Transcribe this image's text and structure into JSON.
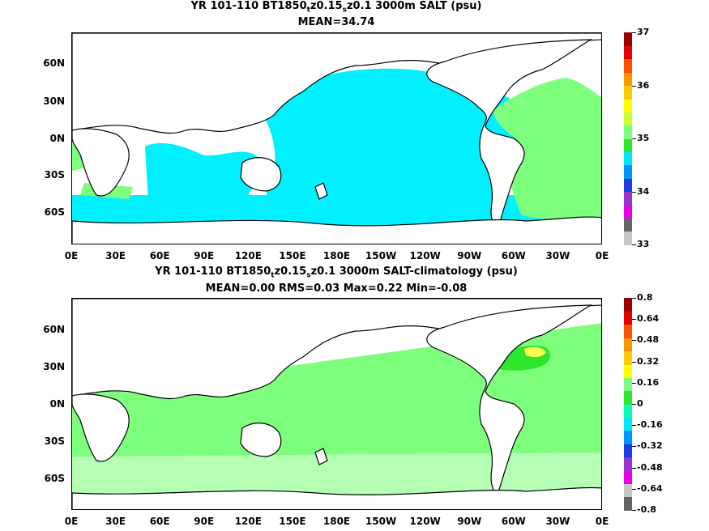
{
  "panel1": {
    "title_line1_a": "YR 101-110 BT1850",
    "title_line1_sub1": "t",
    "title_line1_b": "z0.15",
    "title_line1_sub2": "s",
    "title_line1_c": "z0.1 3000m SALT (psu)",
    "title_line2": "MEAN=34.74",
    "colorbar_labels": [
      "37",
      "36",
      "35",
      "34",
      "33"
    ],
    "colorbar_colors": [
      "#c8c8c8",
      "#646464",
      "#e600e6",
      "#9b32cd",
      "#1e3ce6",
      "#0096ff",
      "#00e6ff",
      "#2ee62e",
      "#7dff7d",
      "#c8ff32",
      "#ffff00",
      "#ffc800",
      "#ff9600",
      "#ff5000",
      "#e60000",
      "#9b0000"
    ]
  },
  "panel2": {
    "title_line1_a": "YR 101-110 BT1850",
    "title_line1_sub1": "t",
    "title_line1_b": "z0.15",
    "title_line1_sub2": "s",
    "title_line1_c": "z0.1 3000m SALT-climatology (psu)",
    "title_line2": "MEAN=0.00   RMS=0.03   Max=0.22   Min=-0.08",
    "colorbar_labels": [
      "0.8",
      "0.64",
      "0.48",
      "0.32",
      "0.16",
      "0",
      "-0.16",
      "-0.32",
      "-0.48",
      "-0.64",
      "-0.8"
    ],
    "colorbar_colors": [
      "#646464",
      "#c8c8c8",
      "#e600e6",
      "#9b32cd",
      "#1e3ce6",
      "#0096ff",
      "#00e6ff",
      "#00ffb4",
      "#2ee62e",
      "#7dff7d",
      "#ffff00",
      "#ffc800",
      "#ff9600",
      "#ff5000",
      "#e60000",
      "#9b0000"
    ]
  },
  "axes": {
    "y_labels": [
      "60N",
      "30N",
      "0N",
      "30S",
      "60S"
    ],
    "x_labels": [
      "0E",
      "30E",
      "60E",
      "90E",
      "120E",
      "150E",
      "180E",
      "150W",
      "120W",
      "90W",
      "60W",
      "30W",
      "0E"
    ]
  },
  "colors": {
    "ocean_salt": "#00f0ff",
    "salt_green": "#7dff7d",
    "anom_green": "#7dff7d",
    "anom_light": "#b4ffb4",
    "anom_yellow": "#ffff50",
    "land": "#ffffff"
  }
}
